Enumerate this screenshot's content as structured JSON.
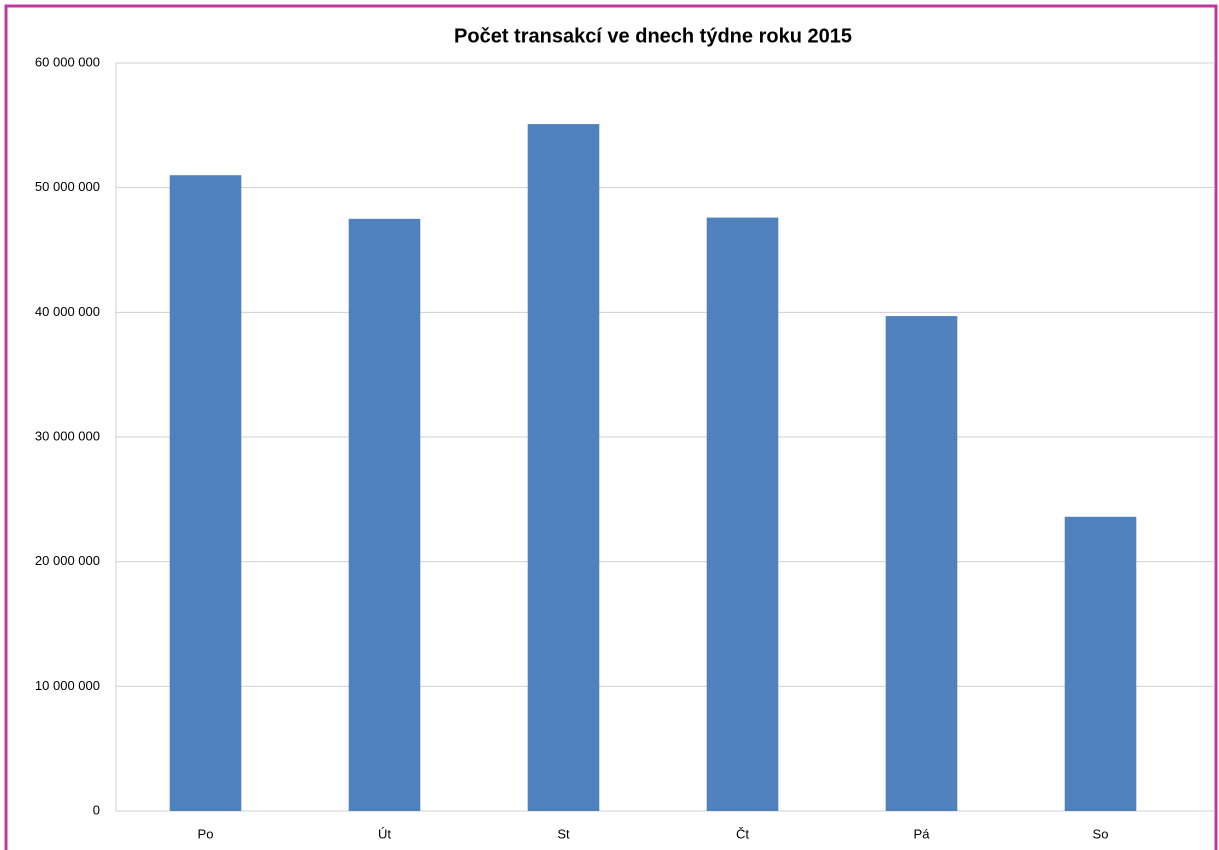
{
  "chart_data": {
    "type": "bar",
    "title": "Počet transakcí ve dnech týdne roku 2015",
    "categories": [
      "Po",
      "Út",
      "St",
      "Čt",
      "Pá",
      "So"
    ],
    "values": [
      51000000,
      47500000,
      55100000,
      47600000,
      39700000,
      23600000
    ],
    "color": "#4f81bd",
    "ylim": [
      0,
      60000000
    ],
    "yticks": [
      0,
      {
        "value": 10000000,
        "label": "10 000 000"
      },
      {
        "value": 20000000,
        "label": "20 000 000"
      },
      {
        "value": 30000000,
        "label": "30 000 000"
      },
      {
        "value": 40000000,
        "label": "40 000 000"
      },
      {
        "value": 50000000,
        "label": "50 000 000"
      },
      {
        "value": 60000000,
        "label": "60 000 000"
      }
    ],
    "grid": true
  }
}
